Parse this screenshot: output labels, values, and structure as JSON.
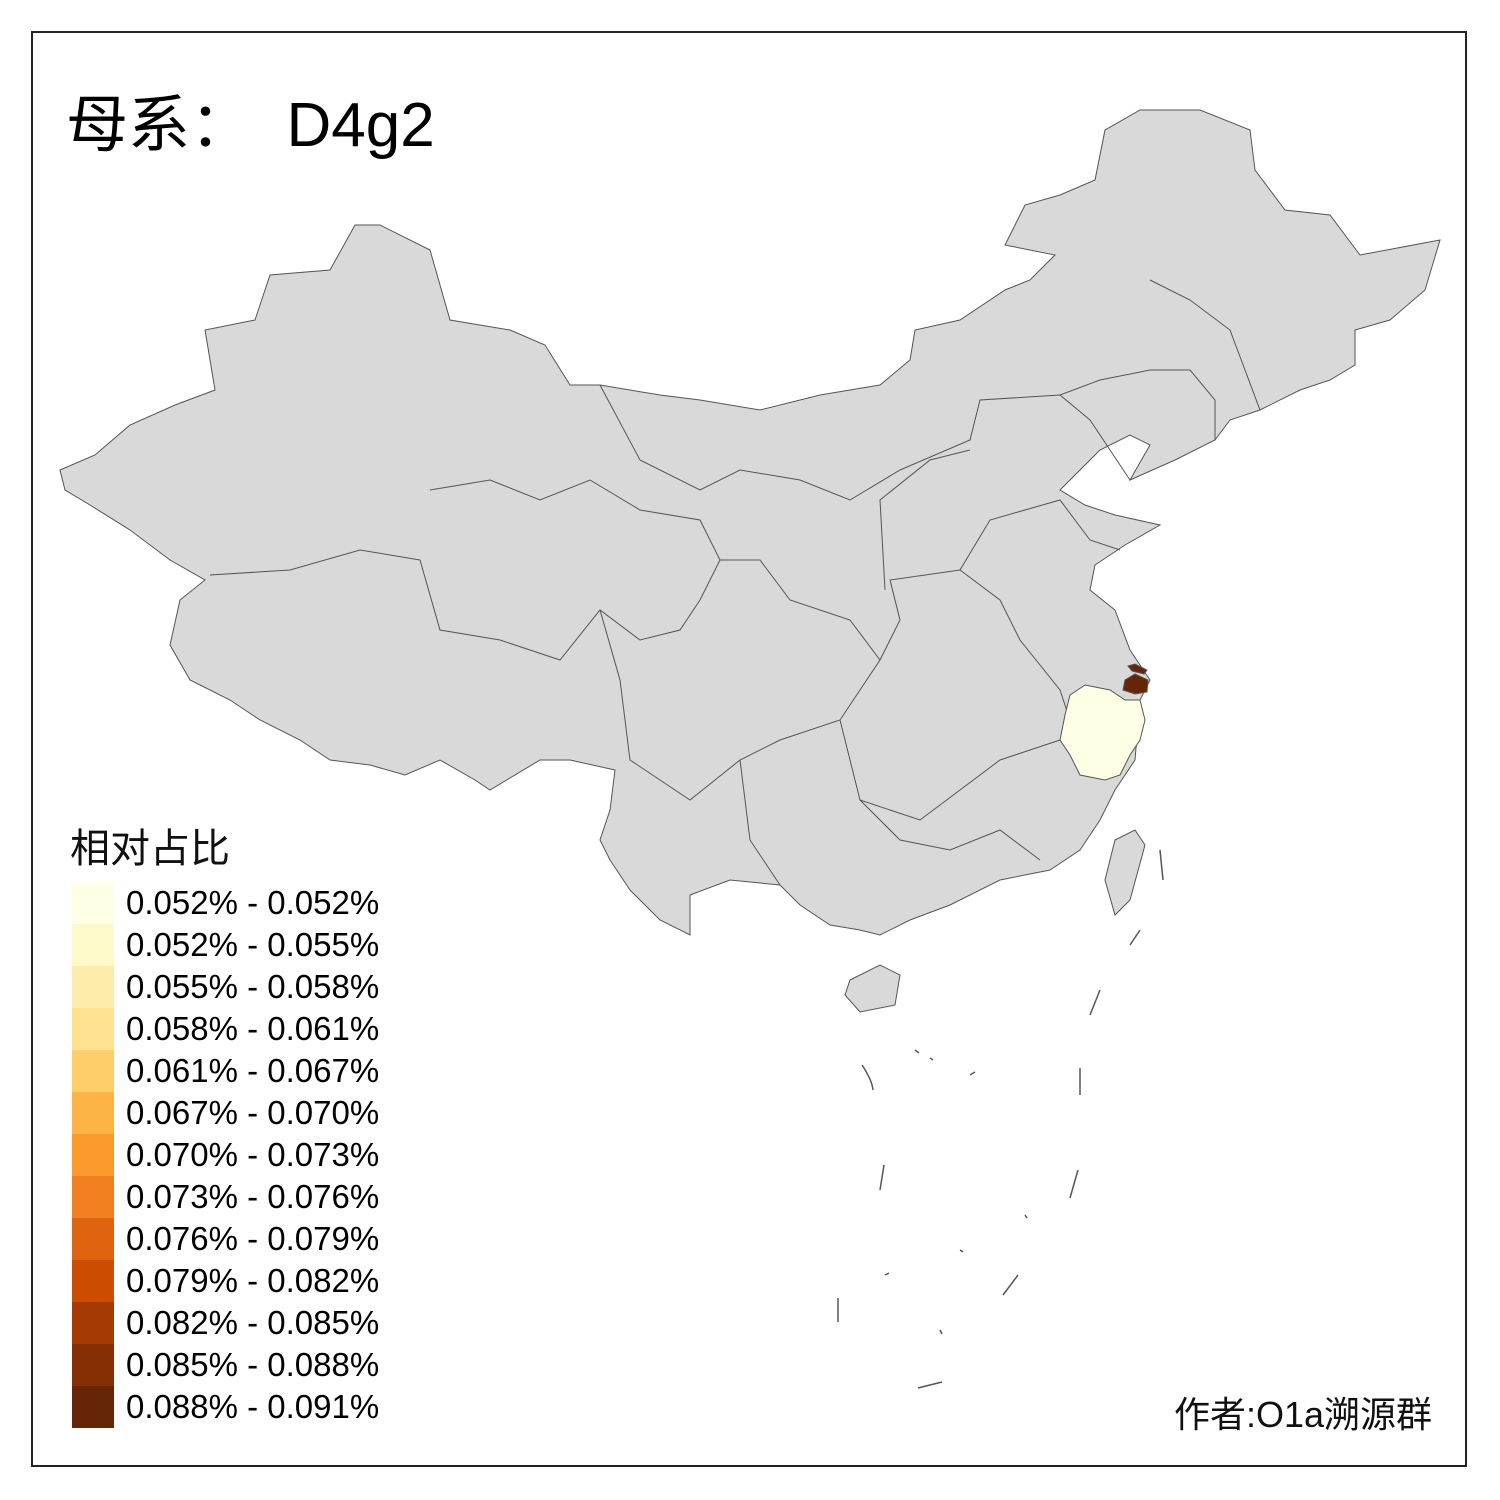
{
  "title": "母系：  D4g2",
  "legend": {
    "title": "相对占比",
    "items": [
      {
        "label": "0.052% - 0.052%",
        "color": "#FFFFE5"
      },
      {
        "label": "0.052% - 0.055%",
        "color": "#FFF8C8"
      },
      {
        "label": "0.055% - 0.058%",
        "color": "#FEEDAA"
      },
      {
        "label": "0.058% - 0.061%",
        "color": "#FEE28F"
      },
      {
        "label": "0.061% - 0.067%",
        "color": "#FECE6A"
      },
      {
        "label": "0.067% - 0.070%",
        "color": "#FDB445"
      },
      {
        "label": "0.070% - 0.073%",
        "color": "#FB9A2A"
      },
      {
        "label": "0.073% - 0.076%",
        "color": "#F0801F"
      },
      {
        "label": "0.076% - 0.079%",
        "color": "#E0640F"
      },
      {
        "label": "0.079% - 0.082%",
        "color": "#CC4C02"
      },
      {
        "label": "0.082% - 0.085%",
        "color": "#A63A04"
      },
      {
        "label": "0.085% - 0.088%",
        "color": "#862E04"
      },
      {
        "label": "0.088% - 0.091%",
        "color": "#662506"
      }
    ]
  },
  "map": {
    "no_data_color": "#D9D9D9",
    "border_color": "#555555",
    "highlighted_regions": [
      {
        "region": "Zhejiang",
        "color": "#FFFFE5"
      },
      {
        "region": "Shanghai",
        "color": "#662506"
      }
    ]
  },
  "author": "作者:O1a溯源群"
}
